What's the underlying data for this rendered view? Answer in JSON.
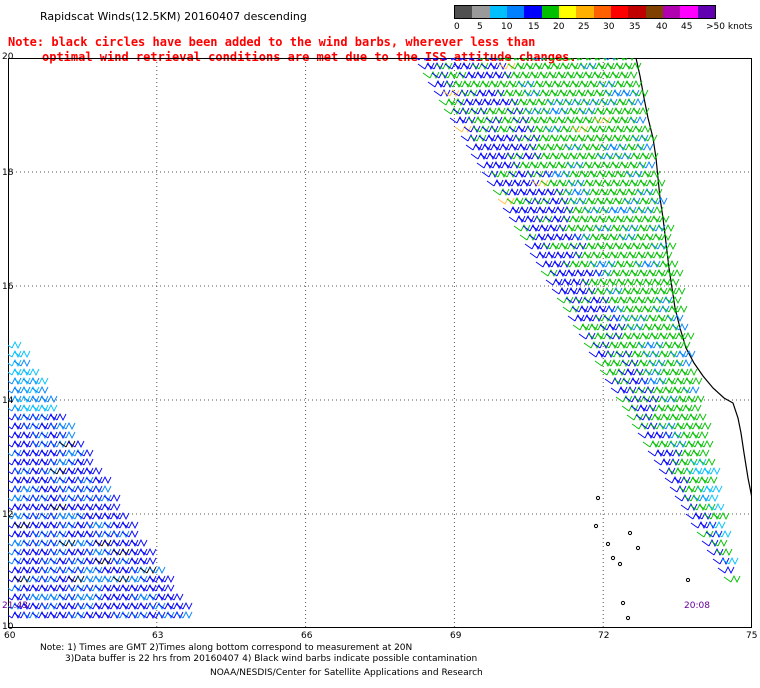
{
  "header": {
    "title": "Rapidscat Winds(12.5KM) 20160407 descending",
    "note_line1": "Note: black circles have been added to the wind barbs, wherever less than",
    "note_line2": "optimal wind retrieval conditions are met due to the ISS attitude changes."
  },
  "colorbar": {
    "labels": [
      "0",
      "5",
      "10",
      "15",
      "20",
      "25",
      "30",
      "35",
      "40",
      "45",
      ">50 knots"
    ],
    "colors": [
      "#505050",
      "#9a9a9a",
      "#00bfff",
      "#0080ff",
      "#0000ff",
      "#00c000",
      "#ffff00",
      "#ffb000",
      "#ff6000",
      "#ff0000",
      "#c00000",
      "#804000",
      "#b000b0",
      "#ff00ff",
      "#6000b0"
    ]
  },
  "axes": {
    "lat_labels": [
      "20",
      "18",
      "16",
      "14",
      "12",
      "10"
    ],
    "lon_labels": [
      "60",
      "63",
      "66",
      "69",
      "72",
      "75"
    ]
  },
  "pass_times": {
    "left": "21:43",
    "right": "20:08"
  },
  "footer": {
    "line1": "Note: 1) Times are GMT 2)Times along bottom correspond to measurement at 20N",
    "line2": "3)Data buffer is 22 hrs from 20160407 4) Black wind barbs indicate possible contamination",
    "line3": "NOAA/NESDIS/Center for Satellite Applications and Research"
  }
}
